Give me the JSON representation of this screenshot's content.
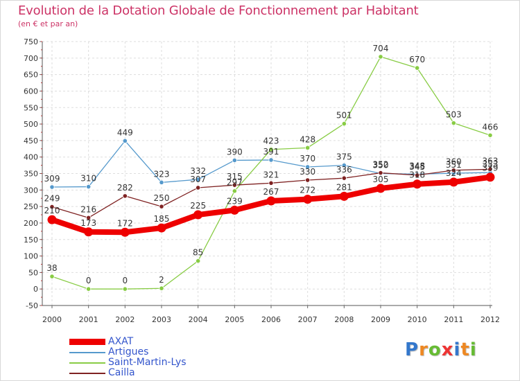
{
  "title": "Evolution de la Dotation Globale de Fonctionnement par Habitant",
  "subtitle": "(en € et par an)",
  "chart_data": {
    "type": "line",
    "title": "Evolution de la Dotation Globale de Fonctionnement par Habitant",
    "ylabel": "(en € et par an)",
    "xlabel": "",
    "ylim": [
      -50,
      750
    ],
    "yticks": [
      -50,
      0,
      50,
      100,
      150,
      200,
      250,
      300,
      350,
      400,
      450,
      500,
      550,
      600,
      650,
      700,
      750
    ],
    "x": [
      "2000",
      "2001",
      "2002",
      "2003",
      "2004",
      "2005",
      "2006",
      "2007",
      "2008",
      "2009",
      "2010",
      "2011",
      "2012"
    ],
    "grid": true,
    "legend": "bottom-left",
    "series": [
      {
        "name": "AXAT",
        "color": "#ee0000",
        "values": [
          210,
          173,
          172,
          185,
          225,
          239,
          267,
          272,
          281,
          305,
          318,
          324,
          339
        ]
      },
      {
        "name": "Artigues",
        "color": "#5599cc",
        "values": [
          309,
          310,
          449,
          323,
          332,
          390,
          391,
          370,
          375,
          350,
          348,
          351,
          353
        ]
      },
      {
        "name": "Saint-Martin-Lys",
        "color": "#88cc44",
        "values": [
          38,
          0,
          0,
          2,
          85,
          297,
          423,
          428,
          501,
          704,
          670,
          503,
          466
        ]
      },
      {
        "name": "Cailla",
        "color": "#7f2222",
        "values": [
          249,
          216,
          282,
          250,
          307,
          315,
          321,
          330,
          336,
          352,
          345,
          360,
          363
        ]
      }
    ]
  },
  "legend_items": [
    {
      "label": "AXAT",
      "color": "#ee0000"
    },
    {
      "label": "Artigues",
      "color": "#5599cc"
    },
    {
      "label": "Saint-Martin-Lys",
      "color": "#88cc44"
    },
    {
      "label": "Cailla",
      "color": "#7f2222"
    }
  ],
  "logo": {
    "letters": [
      "P",
      "r",
      "o",
      "x",
      "i",
      "t",
      "i"
    ],
    "colors": [
      "#3377cc",
      "#ee8822",
      "#66bb33",
      "#ee3333",
      "#3377cc",
      "#ee8822",
      "#66bb33"
    ]
  }
}
